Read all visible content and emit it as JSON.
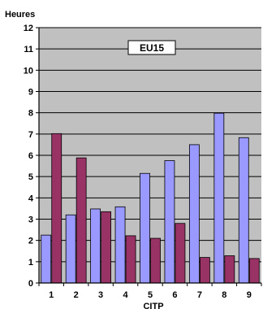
{
  "chart_data": {
    "type": "bar",
    "title": "",
    "ylabel": "Heures",
    "xlabel": "CITP",
    "annotation": "EU15",
    "categories": [
      "1",
      "2",
      "3",
      "4",
      "5",
      "6",
      "7",
      "8",
      "9"
    ],
    "series": [
      {
        "values": [
          2.25,
          3.2,
          3.48,
          3.58,
          5.15,
          5.75,
          6.5,
          7.98,
          6.83
        ]
      },
      {
        "values": [
          7.02,
          5.88,
          3.35,
          2.22,
          2.1,
          2.8,
          1.2,
          1.28,
          1.15
        ]
      }
    ],
    "ylim": [
      0,
      12
    ],
    "yticks": [
      0,
      1,
      2,
      3,
      4,
      5,
      6,
      7,
      8,
      9,
      10,
      11,
      12
    ],
    "grid": true,
    "legend": "none",
    "colors": {
      "plot_bg": "#c0c0c0",
      "series": [
        "#9999ff",
        "#993366"
      ],
      "grid": "#000000"
    }
  }
}
